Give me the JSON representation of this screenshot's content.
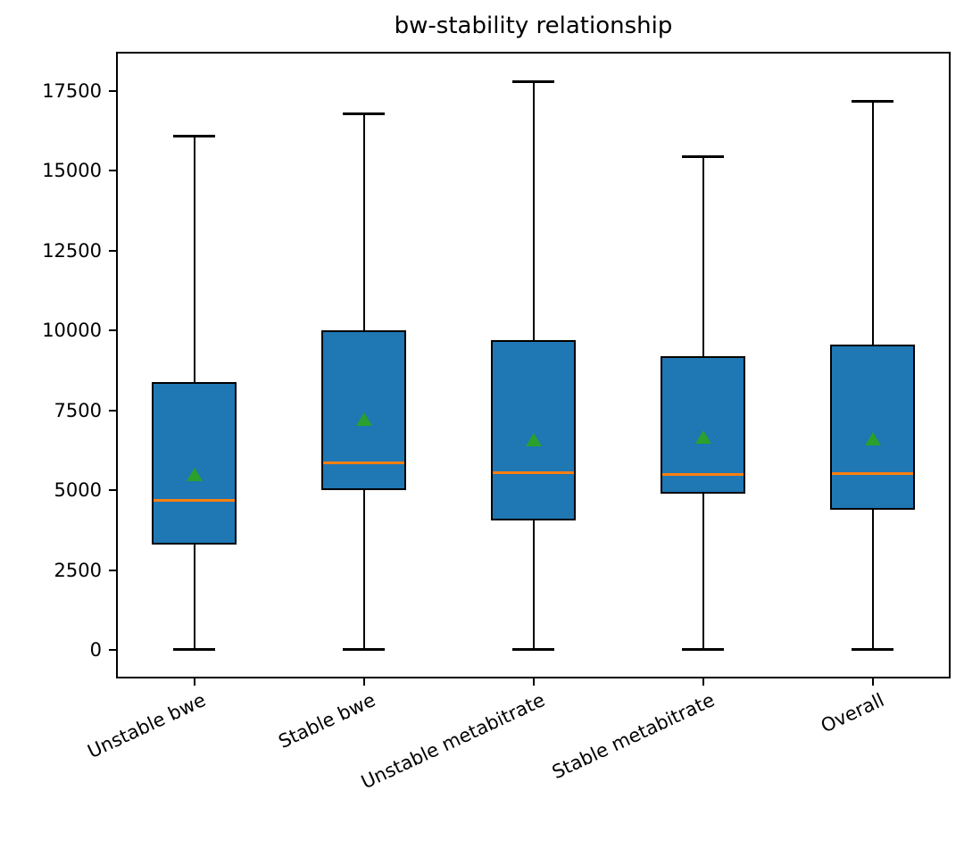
{
  "title": "bw-stability relationship",
  "colors": {
    "background": "#ffffff",
    "box_fill": "#1f77b4",
    "box_edge": "#000000",
    "whisker": "#000000",
    "median": "#ff7f0e",
    "mean_marker": "#2ca02c",
    "axis": "#000000",
    "text": "#000000"
  },
  "chart_data": {
    "type": "box",
    "title": "bw-stability relationship",
    "xlabel": "",
    "ylabel": "",
    "categories": [
      "Unstable bwe",
      "Stable bwe",
      "Unstable metabitrate",
      "Stable metabitrate",
      "Overall"
    ],
    "boxes": [
      {
        "label": "Unstable bwe",
        "whislo": 0,
        "q1": 3300,
        "med": 4700,
        "q3": 8400,
        "whishi": 16100,
        "mean": 5470
      },
      {
        "label": "Stable bwe",
        "whislo": 0,
        "q1": 5000,
        "med": 5880,
        "q3": 10000,
        "whishi": 16800,
        "mean": 7220
      },
      {
        "label": "Unstable metabitrate",
        "whislo": 0,
        "q1": 4050,
        "med": 5570,
        "q3": 9700,
        "whishi": 17800,
        "mean": 6570
      },
      {
        "label": "Stable metabitrate",
        "whislo": 0,
        "q1": 4900,
        "med": 5510,
        "q3": 9200,
        "whishi": 15450,
        "mean": 6670
      },
      {
        "label": "Overall",
        "whislo": 0,
        "q1": 4400,
        "med": 5530,
        "q3": 9550,
        "whishi": 17200,
        "mean": 6600
      }
    ],
    "yticks": [
      0,
      2500,
      5000,
      7500,
      10000,
      12500,
      15000,
      17500
    ],
    "ylim": [
      -830,
      18670
    ],
    "xlim": [
      0.55,
      5.45
    ],
    "box_width": 0.5,
    "cap_width": 0.25,
    "xtick_rotation_deg": 25,
    "grid": false,
    "legend": null,
    "marker_means": "green-triangle-up"
  }
}
